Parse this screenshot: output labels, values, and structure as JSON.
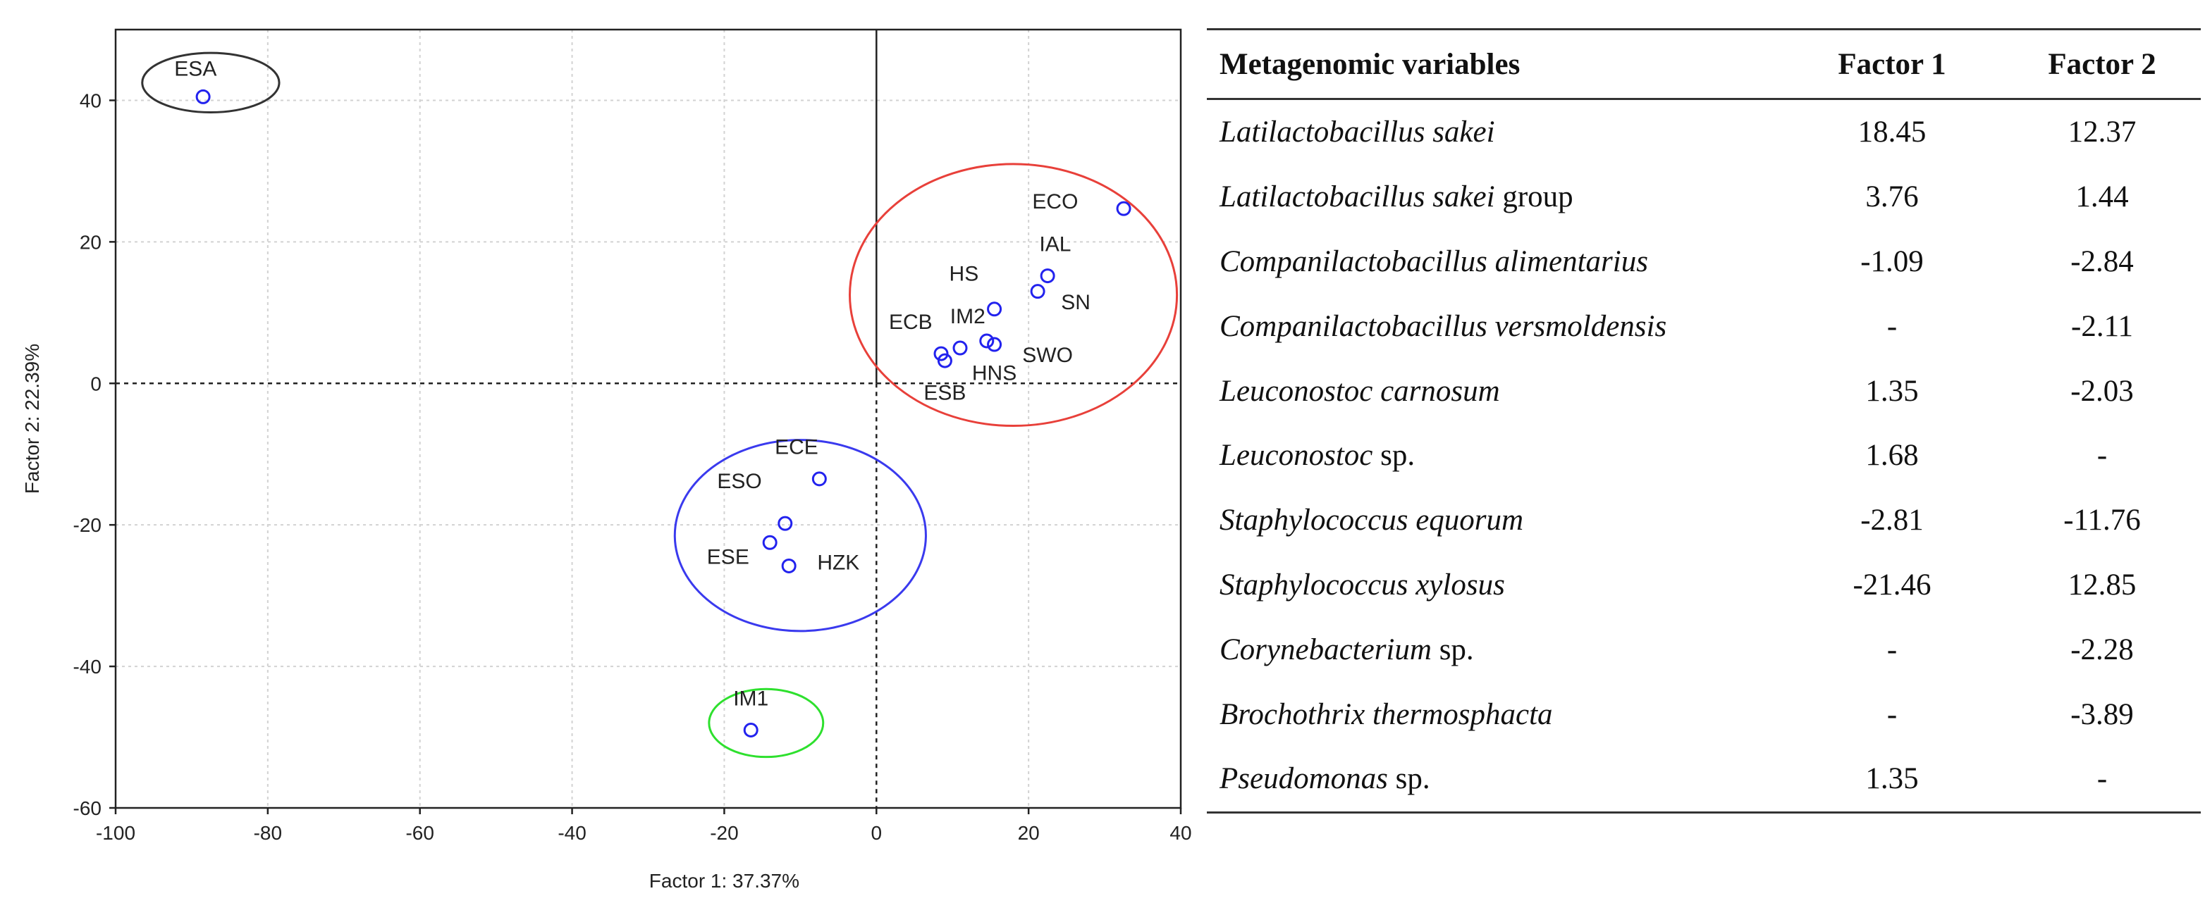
{
  "chart_data": [
    {
      "type": "scatter",
      "xlabel": "Factor 1: 37.37%",
      "ylabel": "Factor 2: 22.39%",
      "xlim": [
        -100,
        40
      ],
      "ylim": [
        -60,
        50
      ],
      "xticks": [
        -100,
        -80,
        -60,
        -40,
        -20,
        0,
        20,
        40
      ],
      "yticks": [
        -60,
        -40,
        -20,
        0,
        20,
        40
      ],
      "xtick_labels": [
        "-100",
        "-80",
        "-60",
        "-40",
        "-20",
        "0",
        "20",
        "40"
      ],
      "ytick_labels": [
        "-60",
        "-40",
        "-20",
        "0",
        "20",
        "40"
      ],
      "grid": true,
      "points": [
        {
          "label": "ESA",
          "x": -88.5,
          "y": 40.5,
          "label_dx": -1,
          "label_dy": 3
        },
        {
          "label": "ECO",
          "x": 32.5,
          "y": 24.7,
          "label_dx": -9,
          "label_dy": 0
        },
        {
          "label": "IAL",
          "x": 22.5,
          "y": 15.2,
          "label_dx": 1,
          "label_dy": 3.5
        },
        {
          "label": "HS",
          "x": 15.5,
          "y": 10.5,
          "label_dx": -4,
          "label_dy": 4
        },
        {
          "label": "SN",
          "x": 21.2,
          "y": 13.0,
          "label_dx": 5,
          "label_dy": -2.5
        },
        {
          "label": "IM2",
          "x": 11.0,
          "y": 5.0,
          "label_dx": 1,
          "label_dy": 3.5
        },
        {
          "label": "ECB",
          "x": 8.5,
          "y": 4.2,
          "label_dx": -4,
          "label_dy": 3.5
        },
        {
          "label": "SWO",
          "x": 14.5,
          "y": 6.0,
          "label_dx": 8,
          "label_dy": -3
        },
        {
          "label": "HNS",
          "x": 15.5,
          "y": 5.5,
          "label_dx": 0,
          "label_dy": -5
        },
        {
          "label": "ESB",
          "x": 9.0,
          "y": 3.2,
          "label_dx": 0,
          "label_dy": -5.5
        },
        {
          "label": "ECE",
          "x": -7.5,
          "y": -13.5,
          "label_dx": -3,
          "label_dy": 3.5
        },
        {
          "label": "ESO",
          "x": -12.0,
          "y": -19.8,
          "label_dx": -6,
          "label_dy": 5
        },
        {
          "label": "ESE",
          "x": -14.0,
          "y": -22.5,
          "label_dx": -5.5,
          "label_dy": -3
        },
        {
          "label": "HZK",
          "x": -11.5,
          "y": -25.8,
          "label_dx": 6.5,
          "label_dy": -0.5
        },
        {
          "label": "IM1",
          "x": -16.5,
          "y": -49.0,
          "label_dx": 0,
          "label_dy": 3.5
        }
      ],
      "groups": [
        {
          "name": "ESA",
          "cx": -87.5,
          "cy": 42.5,
          "rx": 9,
          "ry": 4.2,
          "color": "#333333"
        },
        {
          "name": "cluster-1",
          "cx": 18,
          "cy": 12.5,
          "rx": 21.5,
          "ry": 18.5,
          "color": "#e8403a"
        },
        {
          "name": "cluster-2",
          "cx": -10,
          "cy": -21.5,
          "rx": 16.5,
          "ry": 13.5,
          "color": "#3a3aee"
        },
        {
          "name": "IM1",
          "cx": -14.5,
          "cy": -48,
          "rx": 7.5,
          "ry": 4.8,
          "color": "#2ee02e"
        }
      ],
      "point_color": "#2222ee"
    },
    {
      "type": "table",
      "columns": [
        "Metagenomic variables",
        "Factor 1",
        "Factor 2"
      ],
      "rows": [
        {
          "name": "Latilactobacillus sakei",
          "suffix": "",
          "f1": "18.45",
          "f2": "12.37"
        },
        {
          "name": "Latilactobacillus sakei",
          "suffix": "group",
          "f1": "3.76",
          "f2": "1.44"
        },
        {
          "name": "Companilactobacillus alimentarius",
          "suffix": "",
          "f1": "-1.09",
          "f2": "-2.84"
        },
        {
          "name": "Companilactobacillus versmoldensis",
          "suffix": "",
          "f1": "-",
          "f2": "-2.11"
        },
        {
          "name": "Leuconostoc carnosum",
          "suffix": "",
          "f1": "1.35",
          "f2": "-2.03"
        },
        {
          "name": "Leuconostoc",
          "suffix": "sp.",
          "f1": "1.68",
          "f2": "-"
        },
        {
          "name": "Staphylococcus equorum",
          "suffix": "",
          "f1": "-2.81",
          "f2": "-11.76"
        },
        {
          "name": "Staphylococcus xylosus",
          "suffix": "",
          "f1": "-21.46",
          "f2": "12.85"
        },
        {
          "name": "Corynebacterium",
          "suffix": "sp.",
          "f1": "-",
          "f2": "-2.28"
        },
        {
          "name": "Brochothrix thermosphacta",
          "suffix": "",
          "f1": "-",
          "f2": "-3.89"
        },
        {
          "name": "Pseudomonas",
          "suffix": "sp.",
          "f1": "1.35",
          "f2": "-"
        }
      ]
    }
  ]
}
